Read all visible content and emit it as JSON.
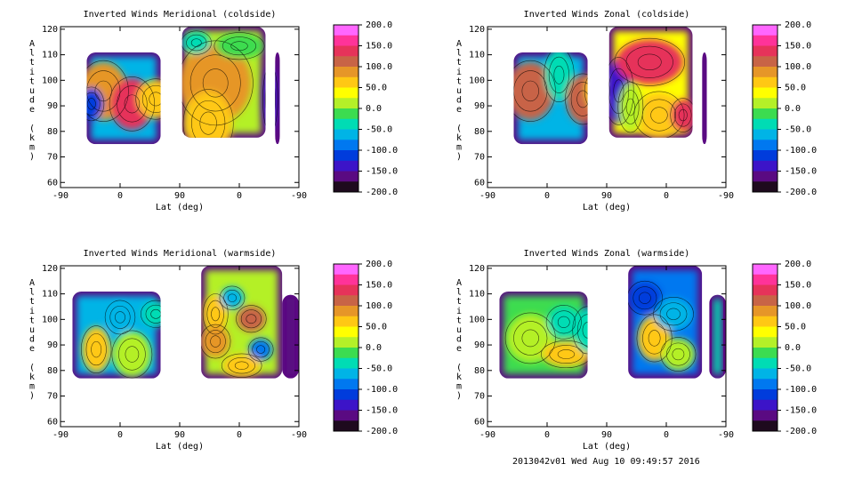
{
  "footer": "2013042v01 Wed Aug 10 09:49:57 2016",
  "colorbar": {
    "ticks": [
      "200.0",
      "150.0",
      "100.0",
      "50.0",
      "0.0",
      "-50.0",
      "-100.0",
      "-150.0",
      "-200.0"
    ],
    "colors": [
      "#ff66ff",
      "#ff3399",
      "#e6335a",
      "#c86446",
      "#e69628",
      "#ffc814",
      "#ffff00",
      "#b4f028",
      "#3cdc50",
      "#00dcb4",
      "#00b4e6",
      "#0078f0",
      "#003cdc",
      "#3c14c8",
      "#5a0a82",
      "#1e0a1e"
    ]
  },
  "chart_data": [
    {
      "type": "heatmap",
      "title": "Inverted Winds Meridional (coldside)",
      "xlabel": "Lat (deg)",
      "ylabel": "Altitude (km)",
      "xticks": [
        "-90",
        "0",
        "90",
        "0",
        "-90"
      ],
      "yticks": [
        "60",
        "70",
        "80",
        "90",
        "100",
        "110",
        "120"
      ],
      "ylim": [
        58,
        121
      ],
      "clim": [
        -200,
        200
      ]
    },
    {
      "type": "heatmap",
      "title": "Inverted Winds Zonal (coldside)",
      "xlabel": "Lat (deg)",
      "ylabel": "Altitude (km)",
      "xticks": [
        "-90",
        "0",
        "90",
        "0",
        "-90"
      ],
      "yticks": [
        "60",
        "70",
        "80",
        "90",
        "100",
        "110",
        "120"
      ],
      "ylim": [
        58,
        121
      ],
      "clim": [
        -200,
        200
      ]
    },
    {
      "type": "heatmap",
      "title": "Inverted Winds Meridional (warmside)",
      "xlabel": "Lat (deg)",
      "ylabel": "Altitude (km)",
      "xticks": [
        "-90",
        "0",
        "90",
        "0",
        "-90"
      ],
      "yticks": [
        "60",
        "70",
        "80",
        "90",
        "100",
        "110",
        "120"
      ],
      "ylim": [
        58,
        121
      ],
      "clim": [
        -200,
        200
      ]
    },
    {
      "type": "heatmap",
      "title": "Inverted Winds Zonal (warmside)",
      "xlabel": "Lat (deg)",
      "ylabel": "Altitude (km)",
      "xticks": [
        "-90",
        "0",
        "90",
        "0",
        "-90"
      ],
      "yticks": [
        "60",
        "70",
        "80",
        "90",
        "100",
        "110",
        "120"
      ],
      "ylim": [
        58,
        121
      ],
      "clim": [
        -200,
        200
      ]
    }
  ]
}
